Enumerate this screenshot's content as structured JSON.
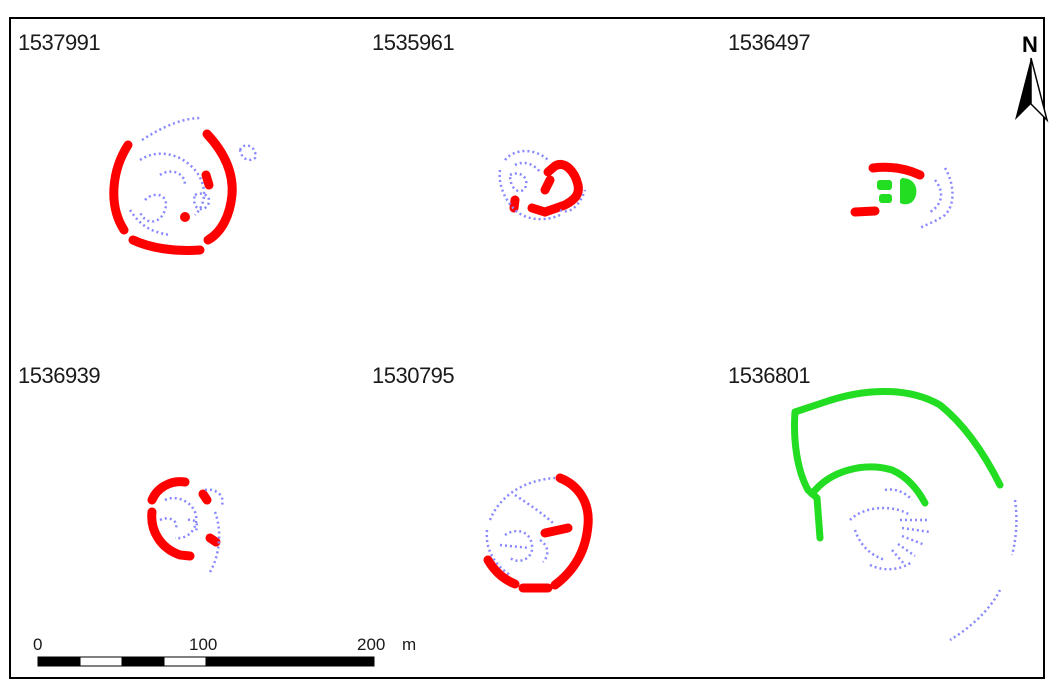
{
  "panels": [
    {
      "id": "1537991"
    },
    {
      "id": "1535961"
    },
    {
      "id": "1536497"
    },
    {
      "id": "1536939"
    },
    {
      "id": "1530795"
    },
    {
      "id": "1536801"
    }
  ],
  "north_arrow": {
    "label": "N",
    "icon": "north-arrow-icon"
  },
  "scale_bar": {
    "ticks": [
      "0",
      "100",
      "200"
    ],
    "unit": "m"
  },
  "colors": {
    "red_features": "#ff0000",
    "green_features": "#22dd22",
    "blue_features": "#8888ff",
    "frame": "#000000"
  }
}
